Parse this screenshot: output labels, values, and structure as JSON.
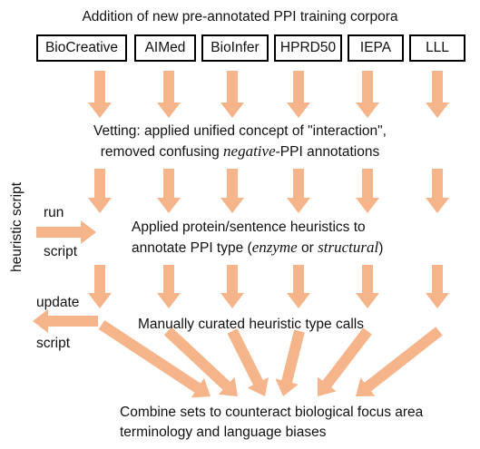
{
  "title": "Addition of new pre-annotated PPI training corpora",
  "corpora": [
    "BioCreative",
    "AIMed",
    "BioInfer",
    "HPRD50",
    "IEPA",
    "LLL"
  ],
  "steps": {
    "vetting_line1": "Vetting: applied unified concept of \"interaction\",",
    "vetting_line2_pre": "removed confusing ",
    "vetting_line2_em": "negative",
    "vetting_line2_post": "-PPI annotations",
    "heuristics_line1": "Applied protein/sentence heuristics to",
    "heuristics_line2_pre": "annotate PPI type (",
    "heuristics_enzyme": "enzyme",
    "heuristics_or": " or ",
    "heuristics_structural": "structural",
    "heuristics_line2_post": ")",
    "manual": "Manually curated heuristic type calls",
    "combine_line1": "Combine sets to counteract biological focus area",
    "combine_line2": "terminology and language biases"
  },
  "side": {
    "vertical_label": "heuristic script",
    "run": "run",
    "run_script": "script",
    "update": "update",
    "update_script": "script"
  },
  "colors": {
    "arrow": "#f5b48a",
    "box_border": "#000000",
    "text": "#111111"
  }
}
